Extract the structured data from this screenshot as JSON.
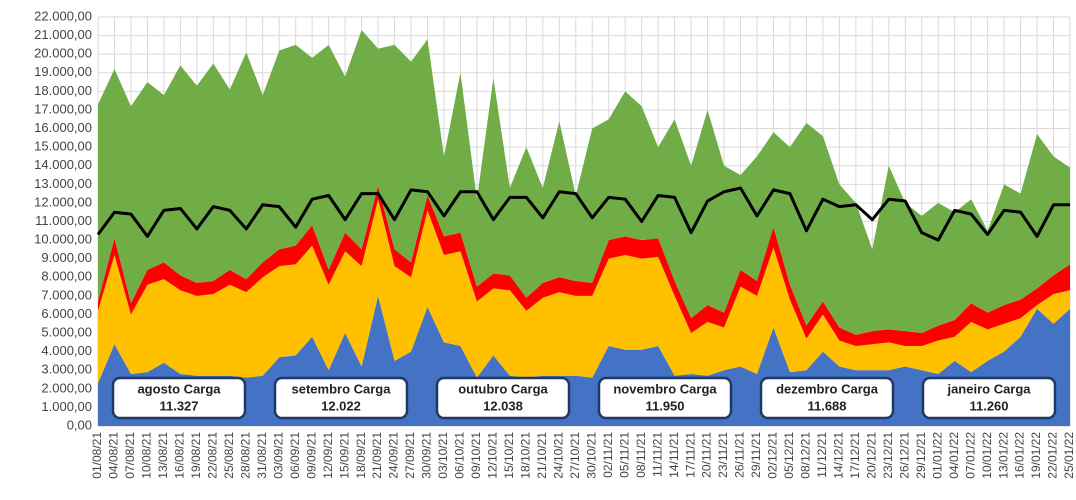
{
  "chart_data": {
    "type": "area",
    "stacked": true,
    "grid": true,
    "categories": [
      "01/08/21",
      "04/08/21",
      "07/08/21",
      "10/08/21",
      "13/08/21",
      "16/08/21",
      "19/08/21",
      "22/08/21",
      "25/08/21",
      "28/08/21",
      "31/08/21",
      "03/09/21",
      "06/09/21",
      "09/09/21",
      "12/09/21",
      "15/09/21",
      "18/09/21",
      "21/09/21",
      "24/09/21",
      "27/09/21",
      "30/09/21",
      "03/10/21",
      "06/10/21",
      "09/10/21",
      "12/10/21",
      "15/10/21",
      "18/10/21",
      "21/10/21",
      "24/10/21",
      "27/10/21",
      "30/10/21",
      "02/11/21",
      "05/11/21",
      "08/11/21",
      "11/11/21",
      "14/11/21",
      "17/11/21",
      "20/11/21",
      "23/11/21",
      "26/11/21",
      "29/11/21",
      "02/12/21",
      "05/12/21",
      "08/12/21",
      "11/12/21",
      "14/12/21",
      "17/12/21",
      "20/12/21",
      "23/12/21",
      "26/12/21",
      "29/12/21",
      "01/01/22",
      "04/01/22",
      "07/01/22",
      "10/01/22",
      "13/01/22",
      "16/01/22",
      "19/01/22",
      "22/01/22",
      "25/01/22"
    ],
    "series": [
      {
        "color": "#4472c4",
        "values": [
          2300,
          4400,
          2800,
          2900,
          3400,
          2800,
          2700,
          2700,
          2700,
          2600,
          2700,
          3700,
          3800,
          4800,
          3000,
          5000,
          3200,
          7000,
          3500,
          4000,
          6400,
          4500,
          4300,
          2600,
          3800,
          2700,
          2600,
          2700,
          2700,
          2700,
          2600,
          4300,
          4100,
          4100,
          4300,
          2700,
          2800,
          2700,
          3000,
          3200,
          2800,
          5300,
          2900,
          3000,
          4000,
          3200,
          3000,
          3000,
          3000,
          3200,
          3000,
          2800,
          3500,
          2900,
          3500,
          4000,
          4800,
          6300,
          5500,
          6300
        ]
      },
      {
        "color": "#ffc000",
        "values": [
          3900,
          4800,
          3200,
          4700,
          4500,
          4500,
          4300,
          4400,
          4900,
          4600,
          5300,
          4900,
          4900,
          4900,
          4600,
          4400,
          5400,
          5200,
          5100,
          4000,
          5200,
          4700,
          5100,
          4100,
          3600,
          4600,
          3600,
          4200,
          4500,
          4300,
          4400,
          4700,
          5100,
          4900,
          4800,
          4300,
          2200,
          2900,
          2300,
          4300,
          4200,
          4300,
          3900,
          1700,
          2000,
          1400,
          1300,
          1400,
          1500,
          1100,
          1300,
          1800,
          1300,
          2700,
          1700,
          1500,
          1000,
          200,
          1600,
          1000
        ]
      },
      {
        "color": "#ff0000",
        "values": [
          500,
          900,
          600,
          800,
          900,
          800,
          700,
          700,
          800,
          700,
          800,
          900,
          1000,
          1100,
          800,
          1000,
          900,
          700,
          900,
          800,
          800,
          1000,
          1000,
          800,
          800,
          800,
          700,
          800,
          800,
          800,
          700,
          1000,
          1000,
          1000,
          1000,
          800,
          800,
          900,
          800,
          900,
          800,
          1100,
          800,
          700,
          700,
          700,
          600,
          700,
          700,
          800,
          700,
          800,
          900,
          1000,
          900,
          1000,
          1000,
          900,
          1000,
          1400
        ]
      },
      {
        "color": "#70ad47",
        "values": [
          10600,
          9100,
          10600,
          10100,
          9000,
          11300,
          10600,
          11700,
          9700,
          12200,
          9000,
          10700,
          10800,
          9000,
          12100,
          8400,
          11800,
          7400,
          11000,
          10800,
          8400,
          4300,
          8600,
          4700,
          10500,
          4700,
          8100,
          5100,
          8400,
          4600,
          8300,
          6500,
          7800,
          7200,
          4900,
          8700,
          8200,
          10500,
          7900,
          5100,
          6700,
          5100,
          7400,
          10900,
          8900,
          7700,
          7100,
          4400,
          8800,
          6900,
          6300,
          6600,
          5800,
          5600,
          4400,
          6500,
          5700,
          8300,
          6400,
          5200
        ]
      },
      {
        "color": "#000000",
        "type": "line",
        "values": [
          10300,
          11500,
          11400,
          10200,
          11600,
          11700,
          10600,
          11800,
          11600,
          10600,
          11900,
          11800,
          10700,
          12200,
          12400,
          11100,
          12500,
          12500,
          11100,
          12700,
          12600,
          11300,
          12600,
          12600,
          11100,
          12300,
          12300,
          11200,
          12600,
          12500,
          11200,
          12300,
          12200,
          11000,
          12400,
          12300,
          10400,
          12100,
          12600,
          12800,
          11300,
          12700,
          12500,
          10500,
          12200,
          11800,
          11900,
          11100,
          12200,
          12100,
          10400,
          10000,
          11600,
          11400,
          10300,
          11600,
          11500,
          10200,
          11900,
          11900
        ]
      }
    ],
    "ylim": [
      0,
      22000
    ],
    "yticks": [
      {
        "value": 0,
        "label": "0,00"
      },
      {
        "value": 1000,
        "label": "1.000,00"
      },
      {
        "value": 2000,
        "label": "2.000,00"
      },
      {
        "value": 3000,
        "label": "3.000,00"
      },
      {
        "value": 4000,
        "label": "4.000,00"
      },
      {
        "value": 5000,
        "label": "5.000,00"
      },
      {
        "value": 6000,
        "label": "6.000,00"
      },
      {
        "value": 7000,
        "label": "7.000,00"
      },
      {
        "value": 8000,
        "label": "8.000,00"
      },
      {
        "value": 9000,
        "label": "9.000,00"
      },
      {
        "value": 10000,
        "label": "10.000,00"
      },
      {
        "value": 11000,
        "label": "11.000,00"
      },
      {
        "value": 12000,
        "label": "12.000,00"
      },
      {
        "value": 13000,
        "label": "13.000,00"
      },
      {
        "value": 14000,
        "label": "14.000,00"
      },
      {
        "value": 15000,
        "label": "15.000,00"
      },
      {
        "value": 16000,
        "label": "16.000,00"
      },
      {
        "value": 17000,
        "label": "17.000,00"
      },
      {
        "value": 18000,
        "label": "18.000,00"
      },
      {
        "value": 19000,
        "label": "19.000,00"
      },
      {
        "value": 20000,
        "label": "20.000,00"
      },
      {
        "value": 21000,
        "label": "21.000,00"
      },
      {
        "value": 22000,
        "label": "22.000,00"
      }
    ],
    "annotations": [
      {
        "label": "agosto Carga",
        "value": "11.327"
      },
      {
        "label": "setembro Carga",
        "value": "12.022"
      },
      {
        "label": "outubro Carga",
        "value": "12.038"
      },
      {
        "label": "novembro Carga",
        "value": "11.950"
      },
      {
        "label": "dezembro Carga",
        "value": "11.688"
      },
      {
        "label": "janeiro Carga",
        "value": "11.260"
      }
    ]
  }
}
